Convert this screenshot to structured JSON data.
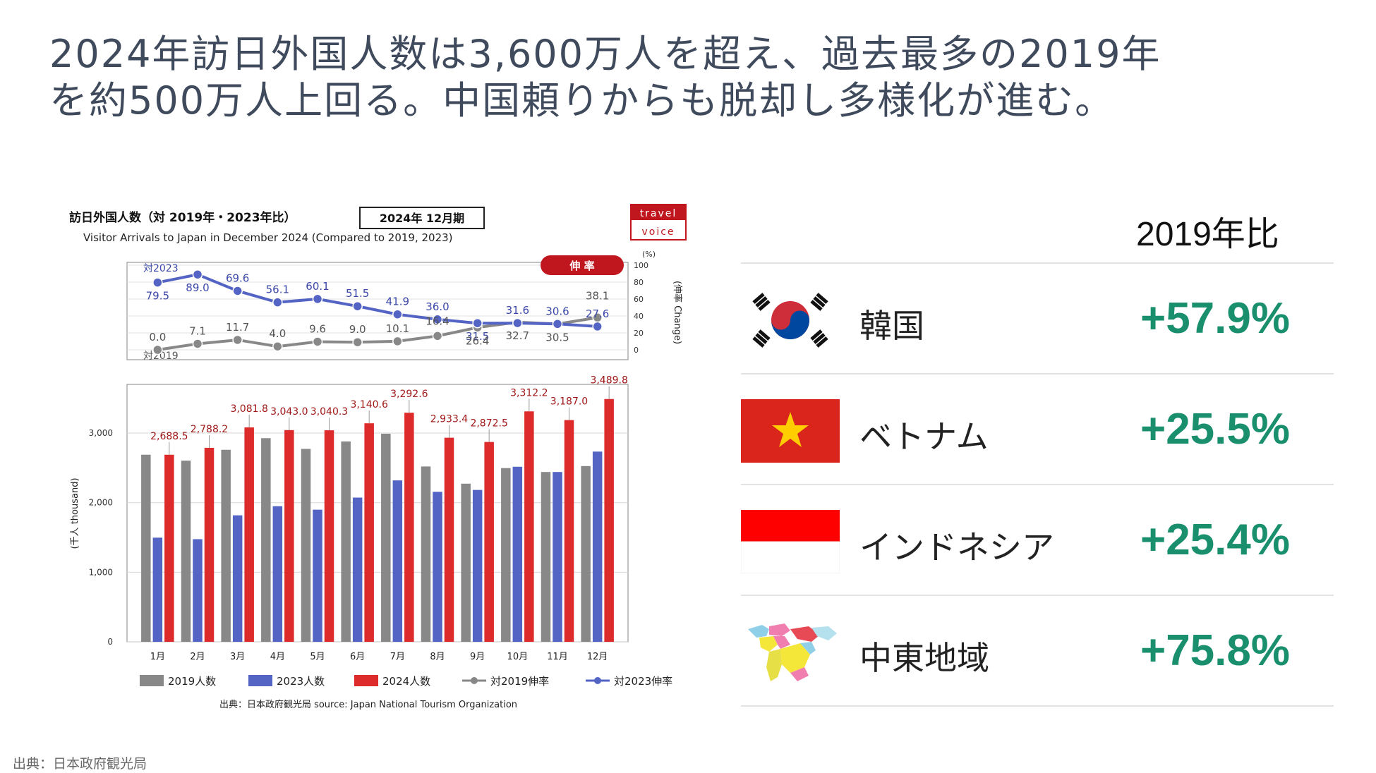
{
  "headline": {
    "line1": "2024年訪日外国人数は3,600万人を超え、過去最多の2019年",
    "line2": "を約500万人上回る。中国頼りからも脱却し多様化が進む。"
  },
  "chart_header": {
    "title_jp": "訪日外国人数（対 2019年・2023年比）",
    "period_box": "2024年 12月期",
    "subtitle_en": "Visitor Arrivals to Japan in December 2024 (Compared to 2019, 2023)",
    "logo_line1": "travel",
    "logo_line2": "voice",
    "badge": "伸 率",
    "source": "出典：日本政府観光局  source: Japan National Tourism Organization"
  },
  "chart_data": [
    {
      "type": "bar",
      "categories": [
        "1月",
        "2月",
        "3月",
        "4月",
        "5月",
        "6月",
        "7月",
        "8月",
        "9月",
        "10月",
        "11月",
        "12月"
      ],
      "series": [
        {
          "name": "2019人数",
          "color": "#888888",
          "values": [
            2689,
            2604,
            2760,
            2927,
            2773,
            2880,
            2991,
            2520,
            2273,
            2497,
            2441,
            2526
          ]
        },
        {
          "name": "2023人数",
          "color": "#5464c4",
          "values": [
            1497,
            1475,
            1818,
            1949,
            1899,
            2073,
            2320,
            2156,
            2183,
            2516,
            2441,
            2734
          ]
        },
        {
          "name": "2024人数",
          "color": "#dd2a2a",
          "values": [
            2688.5,
            2788.2,
            3081.8,
            3043.0,
            3040.3,
            3140.6,
            3292.6,
            2933.4,
            2872.5,
            3312.2,
            3187.0,
            3489.8
          ],
          "labels": [
            "2,688.5",
            "2,788.2",
            "3,081.8",
            "3,043.0",
            "3,040.3",
            "3,140.6",
            "3,292.6",
            "2,933.4",
            "2,872.5",
            "3,312.2",
            "3,187.0",
            "3,489.8"
          ]
        }
      ],
      "ylabel": "(千人 thousand)",
      "ylim": [
        0,
        3700
      ],
      "yticks": [
        "0",
        "1,000",
        "2,000",
        "3,000"
      ],
      "ytick_values": [
        0,
        1000,
        2000,
        3000
      ],
      "grid": true,
      "legend": [
        "2019人数",
        "2023人数",
        "2024人数",
        "対2019伸率",
        "対2023伸率"
      ]
    },
    {
      "type": "line",
      "categories": [
        "1月",
        "2月",
        "3月",
        "4月",
        "5月",
        "6月",
        "7月",
        "8月",
        "9月",
        "10月",
        "11月",
        "12月"
      ],
      "series": [
        {
          "name": "対2023",
          "color": "#5464c4",
          "values": [
            79.5,
            89.0,
            69.6,
            56.1,
            60.1,
            51.5,
            41.9,
            36.0,
            31.5,
            31.6,
            30.6,
            27.6
          ],
          "labels": [
            "79.5",
            "89.0",
            "69.6",
            "56.1",
            "60.1",
            "51.5",
            "41.9",
            "36.0",
            "31.5",
            "31.6",
            "30.6",
            "27.6"
          ]
        },
        {
          "name": "対2019",
          "color": "#888888",
          "values": [
            0.0,
            7.1,
            11.7,
            4.0,
            9.6,
            9.0,
            10.1,
            16.4,
            26.4,
            32.7,
            30.5,
            38.1
          ],
          "labels": [
            "0.0",
            "7.1",
            "11.7",
            "4.0",
            "9.6",
            "9.0",
            "10.1",
            "16.4",
            "26.4",
            "32.7",
            "30.5",
            "38.1"
          ]
        }
      ],
      "ylabel": "(伸率 Change)",
      "unit": "(%)",
      "ylim": [
        0,
        100
      ],
      "yticks": [
        "0",
        "20",
        "40",
        "60",
        "80",
        "100"
      ],
      "ytick_values": [
        0,
        20,
        40,
        60,
        80,
        100
      ],
      "grid": true
    }
  ],
  "comparison": {
    "header": "2019年比",
    "rows": [
      {
        "country": "韓国",
        "value": "+57.9%",
        "flag": "korea-flag-icon"
      },
      {
        "country": "ベトナム",
        "value": "+25.5%",
        "flag": "vietnam-flag-icon"
      },
      {
        "country": "インドネシア",
        "value": "+25.4%",
        "flag": "indonesia-flag-icon"
      },
      {
        "country": "中東地域",
        "value": "+75.8%",
        "flag": "middle-east-map-icon"
      }
    ]
  },
  "footer": {
    "source": "出典：日本政府観光局"
  },
  "colors": {
    "accent_green": "#1a8f6e",
    "title_gray": "#3f4a5c",
    "badge_red": "#c0171f"
  }
}
